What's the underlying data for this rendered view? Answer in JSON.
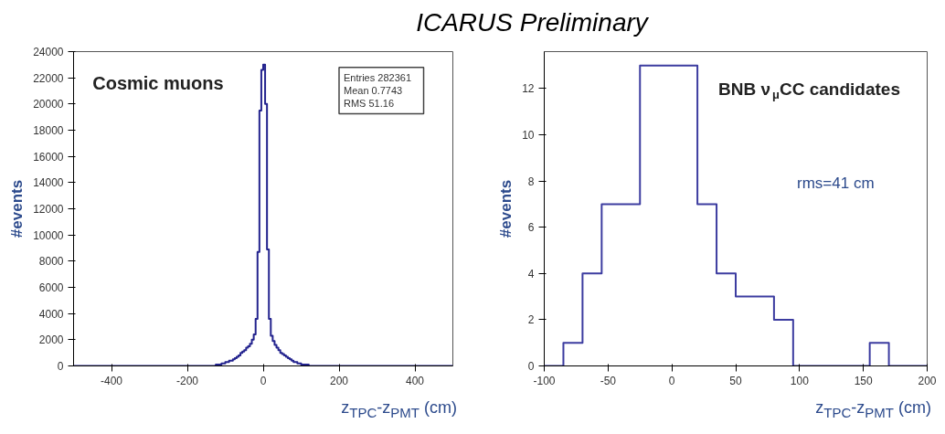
{
  "chart_data": [
    {
      "type": "histogram",
      "xlabel": "z$_{TPC}$-z$_{PMT}$ (cm)",
      "ylabel": "#events",
      "color": "#23238e",
      "annotations": [
        "Cosmic muons",
        "Entries   282361",
        "Mean      0.7743",
        "RMS          51.16"
      ],
      "bins": [
        -500,
        -150,
        -145,
        -140,
        -135,
        -130,
        -125,
        -120,
        -115,
        -110,
        -105,
        -100,
        -95,
        -90,
        -85,
        -80,
        -75,
        -70,
        -65,
        -60,
        -55,
        -50,
        -45,
        -40,
        -35,
        -30,
        -25,
        -20,
        -15,
        -10,
        -5,
        0,
        5,
        10,
        15,
        20,
        25,
        30,
        35,
        40,
        45,
        50,
        55,
        60,
        65,
        70,
        75,
        80,
        85,
        90,
        95,
        100,
        105,
        110,
        115,
        120,
        125,
        130,
        135,
        140,
        145,
        150,
        500
      ],
      "values": [
        0,
        0,
        0,
        0,
        0,
        0,
        100,
        100,
        100,
        200,
        200,
        300,
        300,
        400,
        400,
        500,
        600,
        700,
        800,
        1000,
        1100,
        1200,
        1400,
        1500,
        1700,
        2000,
        2400,
        3600,
        8700,
        19500,
        22600,
        23000,
        20000,
        8900,
        3600,
        2300,
        1900,
        1600,
        1400,
        1200,
        1000,
        900,
        800,
        700,
        600,
        500,
        400,
        300,
        300,
        200,
        200,
        100,
        100,
        100,
        100,
        0,
        0,
        0,
        0,
        0,
        0,
        0
      ],
      "xlim": [
        -500,
        500
      ],
      "xticks": [
        -400,
        -200,
        0,
        200,
        400
      ],
      "ylim": [
        0,
        24000
      ],
      "yticks": [
        0,
        2000,
        4000,
        6000,
        8000,
        10000,
        12000,
        14000,
        16000,
        18000,
        20000,
        22000,
        24000
      ],
      "grid": false
    },
    {
      "type": "histogram",
      "title": "ICARUS Preliminary",
      "xlabel": "z$_{TPC}$-z$_{PMT}$ (cm)",
      "ylabel": "#events",
      "color": "#3c3ca0",
      "annotations": [
        "BNB ν$_{μ}$CC candidates",
        "rms=41 cm"
      ],
      "bins": [
        -100,
        -85,
        -70,
        -55,
        -40,
        -25,
        -10,
        5,
        20,
        35,
        50,
        65,
        80,
        95,
        110,
        125,
        140,
        155,
        170,
        185,
        200
      ],
      "values": [
        0,
        1,
        4,
        7,
        7,
        13,
        13,
        13,
        7,
        4,
        3,
        3,
        2,
        0,
        0,
        0,
        0,
        1,
        0,
        0
      ],
      "xlim": [
        -100,
        200
      ],
      "xticks": [
        -100,
        -50,
        0,
        50,
        100,
        150,
        200
      ],
      "ylim": [
        0,
        13.6
      ],
      "yticks": [
        0,
        2,
        4,
        6,
        8,
        10,
        12
      ],
      "grid": false
    }
  ]
}
